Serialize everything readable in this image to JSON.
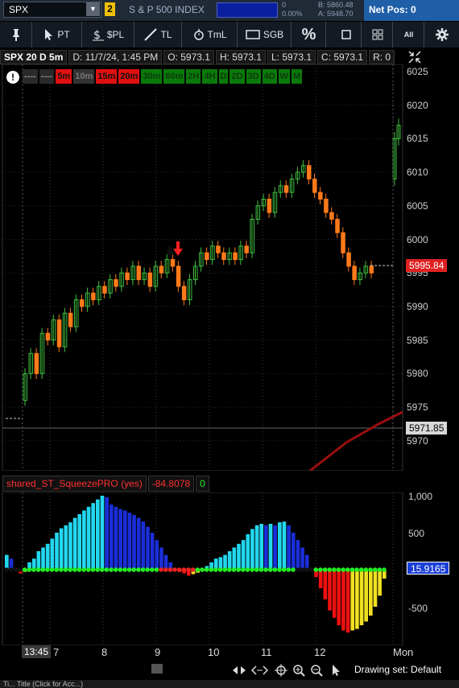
{
  "symbol_bar": {
    "symbol": "SPX",
    "link_number": "2",
    "description": "S & P 500 INDEX",
    "change_value": "0",
    "change_pct": "0.00%",
    "bid": "B: 5860.48",
    "ask": "A: 5948.70",
    "net_pos": "Net Pos: 0"
  },
  "toolbar": {
    "pin_icon": "pin-icon",
    "pt_label": "PT",
    "pl_label": "$PL",
    "tl_label": "TL",
    "tml_label": "TmL",
    "sgb_label": "SGB",
    "pct_label": "%",
    "all_label": "All"
  },
  "chart_header": {
    "symbol": "SPX 20 D 5m",
    "date": "D: 11/7/24, 1:45 PM",
    "open": "O: 5973.1",
    "high": "H: 5973.1",
    "low": "L: 5973.1",
    "close": "C: 5973.1",
    "range": "R: 0"
  },
  "timeframes": [
    {
      "label": "----",
      "bg": "#2a2a2a",
      "fg": "#888"
    },
    {
      "label": "----",
      "bg": "#2a2a2a",
      "fg": "#888"
    },
    {
      "label": "5m",
      "bg": "#e01010",
      "fg": "#111"
    },
    {
      "label": "10m",
      "bg": "#333333",
      "fg": "#777"
    },
    {
      "label": "15m",
      "bg": "#e01010",
      "fg": "#111"
    },
    {
      "label": "20m",
      "bg": "#e01010",
      "fg": "#111"
    },
    {
      "label": "30m",
      "bg": "#0a7a0a",
      "fg": "#0c3a0c"
    },
    {
      "label": "60m",
      "bg": "#0a7a0a",
      "fg": "#0c3a0c"
    },
    {
      "label": "2H",
      "bg": "#0a7a0a",
      "fg": "#0c3a0c"
    },
    {
      "label": "4H",
      "bg": "#0a7a0a",
      "fg": "#0c3a0c"
    },
    {
      "label": "D",
      "bg": "#0a7a0a",
      "fg": "#0c3a0c"
    },
    {
      "label": "2D",
      "bg": "#0a7a0a",
      "fg": "#0c3a0c"
    },
    {
      "label": "3D",
      "bg": "#0a7a0a",
      "fg": "#0c3a0c"
    },
    {
      "label": "4D",
      "bg": "#0a7a0a",
      "fg": "#0c3a0c"
    },
    {
      "label": "W",
      "bg": "#0a7a0a",
      "fg": "#0c3a0c"
    },
    {
      "label": "M",
      "bg": "#0a7a0a",
      "fg": "#0c3a0c"
    }
  ],
  "price_axis": {
    "ticks": [
      "6025",
      "6020",
      "6015",
      "6010",
      "6005",
      "6000",
      "5995",
      "5990",
      "5985",
      "5980",
      "5975",
      "5970"
    ],
    "last_price_tag": "5995.84",
    "cursor_price_tag": "5971.85"
  },
  "indicator": {
    "name": "shared_ST_SqueezePRO (yes)",
    "value": "-84.8078",
    "flag": "0",
    "axis_ticks": [
      "1,000",
      "500",
      "-500"
    ],
    "current_tag": "15.9165"
  },
  "time_axis": {
    "cursor": "13:45",
    "labels": [
      "7",
      "8",
      "9",
      "10",
      "11",
      "12",
      "Mon"
    ]
  },
  "bottom": {
    "drawing_set": "Drawing set: Default"
  },
  "status_bar": {
    "text": "Ti... Title (Click for Acc...)"
  },
  "colors": {
    "up_candle": "#3fbf3f",
    "down_candle": "#ff7a1a",
    "last_tag_bg": "#e02020",
    "cursor_tag_bg": "#d8d8d8",
    "hist_cyan": "#22d8f0",
    "hist_blue": "#1a2ed8",
    "hist_red": "#ee1010",
    "hist_yellow": "#f0e020",
    "dot_green": "#22ee22",
    "dot_red": "#ee2222",
    "tag_blue": "#1a3fd8"
  }
}
